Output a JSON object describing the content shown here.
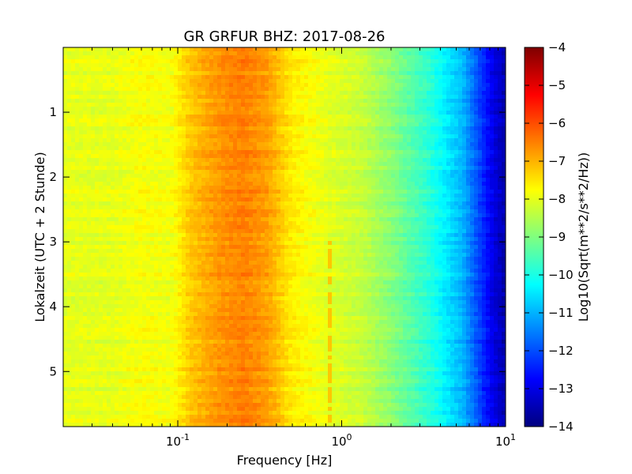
{
  "chart_data": {
    "type": "heatmap",
    "title": "GR GRFUR BHZ: 2017-08-26",
    "xlabel": "Frequency [Hz]",
    "ylabel": "Lokalzeit (UTC + 2 Stunde)",
    "x_scale": "log",
    "xlim": [
      0.02,
      10
    ],
    "ylim": [
      5.85,
      0
    ],
    "y_inverted": true,
    "x_ticks": [
      {
        "value": 0.1,
        "base": "10",
        "exp": "-1"
      },
      {
        "value": 1,
        "base": "10",
        "exp": "0"
      },
      {
        "value": 10,
        "base": "10",
        "exp": "1"
      }
    ],
    "y_ticks": [
      {
        "value": 1,
        "label": "1"
      },
      {
        "value": 2,
        "label": "2"
      },
      {
        "value": 3,
        "label": "3"
      },
      {
        "value": 4,
        "label": "4"
      },
      {
        "value": 5,
        "label": "5"
      }
    ],
    "colorbar": {
      "label": "Log10(Sqrt(m**2/s**2/Hz))",
      "colormap": "jet",
      "range": [
        -14,
        -4
      ],
      "ticks": [
        {
          "value": -4,
          "label": "−4"
        },
        {
          "value": -5,
          "label": "−5"
        },
        {
          "value": -6,
          "label": "−6"
        },
        {
          "value": -7,
          "label": "−7"
        },
        {
          "value": -8,
          "label": "−8"
        },
        {
          "value": -9,
          "label": "−9"
        },
        {
          "value": -10,
          "label": "−10"
        },
        {
          "value": -11,
          "label": "−11"
        },
        {
          "value": -12,
          "label": "−12"
        },
        {
          "value": -13,
          "label": "−13"
        },
        {
          "value": -14,
          "label": "−14"
        }
      ]
    },
    "spectrum_profile": [
      {
        "freq": 0.02,
        "value": -8.0
      },
      {
        "freq": 0.04,
        "value": -8.0
      },
      {
        "freq": 0.06,
        "value": -7.8
      },
      {
        "freq": 0.09,
        "value": -7.9
      },
      {
        "freq": 0.12,
        "value": -7.2
      },
      {
        "freq": 0.18,
        "value": -6.7
      },
      {
        "freq": 0.25,
        "value": -6.5
      },
      {
        "freq": 0.35,
        "value": -6.8
      },
      {
        "freq": 0.5,
        "value": -7.6
      },
      {
        "freq": 0.8,
        "value": -8.0
      },
      {
        "freq": 1.3,
        "value": -8.3
      },
      {
        "freq": 2.0,
        "value": -8.9
      },
      {
        "freq": 3.5,
        "value": -9.9
      },
      {
        "freq": 5.5,
        "value": -11.0
      },
      {
        "freq": 8.0,
        "value": -12.8
      },
      {
        "freq": 10.0,
        "value": -13.6
      }
    ],
    "annotations": [
      {
        "type": "narrow-band line",
        "freq": 0.83,
        "time_start": 3.0,
        "time_end": 5.85,
        "value": -7.2
      }
    ]
  }
}
